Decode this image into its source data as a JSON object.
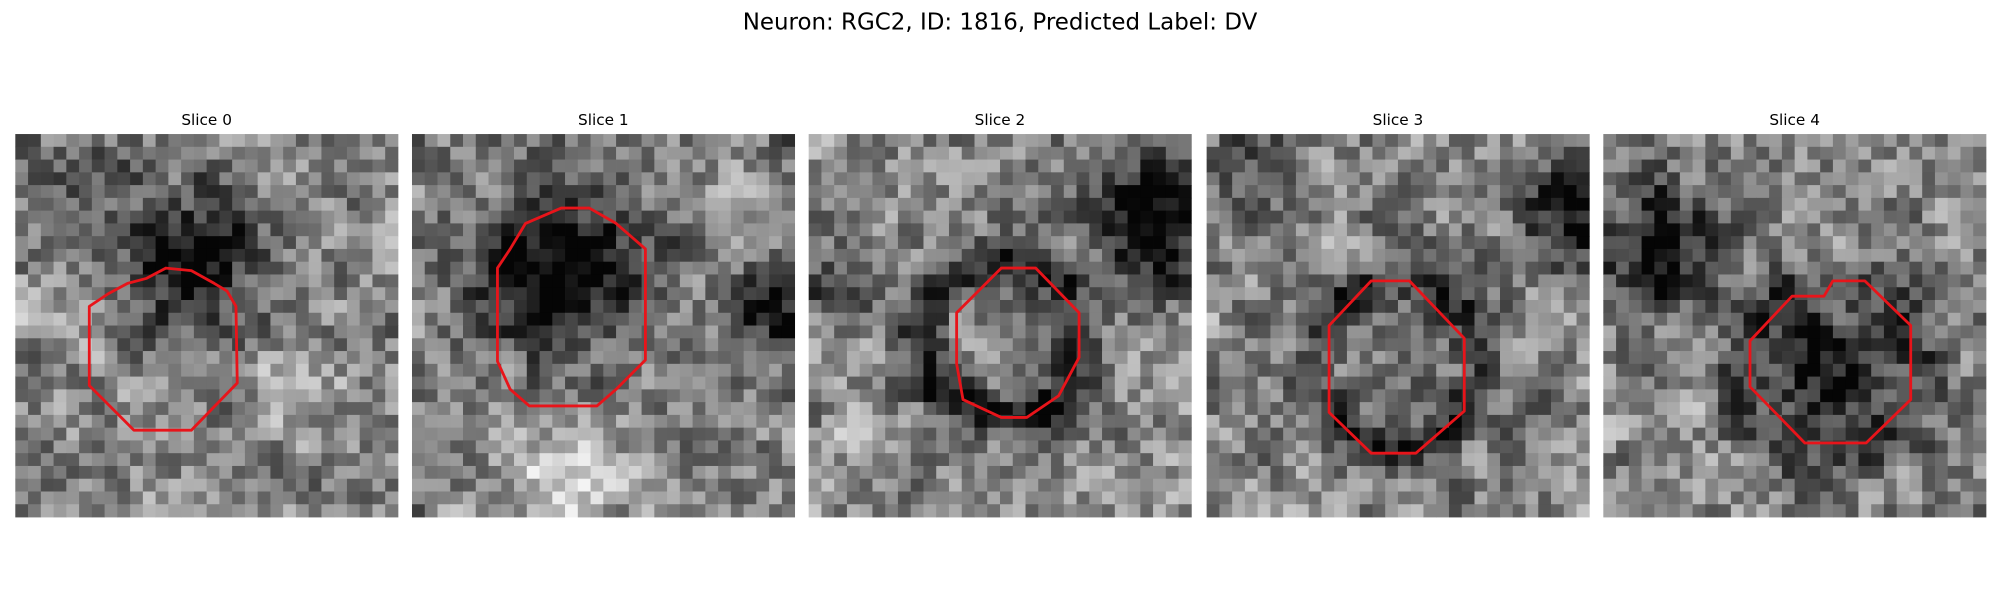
{
  "figure": {
    "title": "Neuron: RGC2, ID: 1816, Predicted Label: DV",
    "panels": [
      {
        "title": "Slice 0"
      },
      {
        "title": "Slice 1"
      },
      {
        "title": "Slice 2"
      },
      {
        "title": "Slice 3"
      },
      {
        "title": "Slice 4"
      }
    ]
  }
}
